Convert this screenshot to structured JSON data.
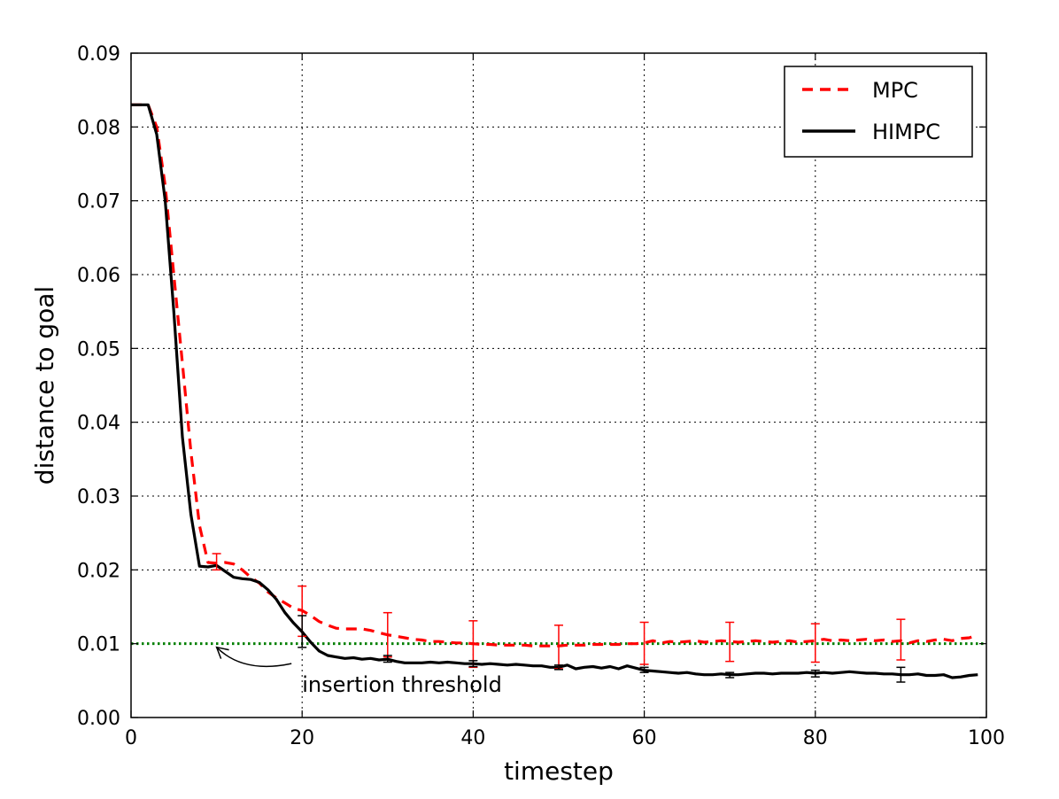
{
  "chart_data": {
    "type": "line",
    "title": "",
    "xlabel": "timestep",
    "ylabel": "distance to goal",
    "xlim": [
      0,
      100
    ],
    "ylim": [
      0,
      0.09
    ],
    "xticks": [
      "0",
      "20",
      "40",
      "60",
      "80",
      "100"
    ],
    "yticks": [
      "0.00",
      "0.01",
      "0.02",
      "0.03",
      "0.04",
      "0.05",
      "0.06",
      "0.07",
      "0.08",
      "0.09"
    ],
    "grid": true,
    "legend_position": "top-right",
    "series": [
      {
        "name": "MPC",
        "color": "#ff0000",
        "style": "dashed",
        "x": [
          0,
          1,
          2,
          3,
          4,
          5,
          6,
          7,
          8,
          9,
          10,
          11,
          12,
          13,
          14,
          15,
          16,
          17,
          18,
          19,
          20,
          21,
          22,
          23,
          24,
          25,
          26,
          27,
          28,
          29,
          30,
          31,
          32,
          33,
          34,
          35,
          36,
          37,
          38,
          39,
          40,
          41,
          42,
          43,
          44,
          45,
          46,
          47,
          48,
          49,
          50,
          51,
          52,
          53,
          54,
          55,
          56,
          57,
          58,
          59,
          60,
          61,
          62,
          63,
          64,
          65,
          66,
          67,
          68,
          69,
          70,
          71,
          72,
          73,
          74,
          75,
          76,
          77,
          78,
          79,
          80,
          81,
          82,
          83,
          84,
          85,
          86,
          87,
          88,
          89,
          90,
          91,
          92,
          93,
          94,
          95,
          96,
          97,
          98,
          99
        ],
        "y": [
          0.083,
          0.083,
          0.083,
          0.08,
          0.072,
          0.06,
          0.048,
          0.036,
          0.026,
          0.021,
          0.0209,
          0.021,
          0.0208,
          0.02,
          0.019,
          0.0182,
          0.017,
          0.0162,
          0.0155,
          0.0148,
          0.0145,
          0.0138,
          0.013,
          0.0125,
          0.0121,
          0.012,
          0.012,
          0.012,
          0.0118,
          0.0115,
          0.0112,
          0.011,
          0.0108,
          0.0106,
          0.0105,
          0.0103,
          0.0103,
          0.0102,
          0.0101,
          0.0101,
          0.01,
          0.0099,
          0.0099,
          0.0098,
          0.0098,
          0.0098,
          0.0098,
          0.0097,
          0.0097,
          0.0097,
          0.0097,
          0.0098,
          0.0098,
          0.0098,
          0.0099,
          0.0099,
          0.0099,
          0.0099,
          0.01,
          0.01,
          0.0101,
          0.0104,
          0.0101,
          0.0103,
          0.0102,
          0.0103,
          0.0104,
          0.0102,
          0.0103,
          0.0104,
          0.0103,
          0.0102,
          0.0103,
          0.0104,
          0.0103,
          0.0102,
          0.0103,
          0.0104,
          0.0102,
          0.0103,
          0.0104,
          0.0106,
          0.0104,
          0.0105,
          0.0104,
          0.0105,
          0.0106,
          0.0104,
          0.0105,
          0.0103,
          0.0104,
          0.0101,
          0.0104,
          0.0103,
          0.0105,
          0.0106,
          0.0104,
          0.0107,
          0.0108,
          0.0112
        ],
        "error_bars": [
          {
            "x": 10,
            "low": 0.02,
            "high": 0.0222
          },
          {
            "x": 20,
            "low": 0.011,
            "high": 0.0178
          },
          {
            "x": 30,
            "low": 0.0082,
            "high": 0.0142
          },
          {
            "x": 40,
            "low": 0.0068,
            "high": 0.0131
          },
          {
            "x": 50,
            "low": 0.0066,
            "high": 0.0125
          },
          {
            "x": 60,
            "low": 0.0072,
            "high": 0.0129
          },
          {
            "x": 70,
            "low": 0.0076,
            "high": 0.0129
          },
          {
            "x": 80,
            "low": 0.0075,
            "high": 0.0127
          },
          {
            "x": 90,
            "low": 0.0078,
            "high": 0.0133
          }
        ]
      },
      {
        "name": "HIMPC",
        "color": "#000000",
        "style": "solid",
        "x": [
          0,
          1,
          2,
          3,
          4,
          5,
          6,
          7,
          8,
          9,
          10,
          11,
          12,
          13,
          14,
          15,
          16,
          17,
          18,
          19,
          20,
          21,
          22,
          23,
          24,
          25,
          26,
          27,
          28,
          29,
          30,
          31,
          32,
          33,
          34,
          35,
          36,
          37,
          38,
          39,
          40,
          41,
          42,
          43,
          44,
          45,
          46,
          47,
          48,
          49,
          50,
          51,
          52,
          53,
          54,
          55,
          56,
          57,
          58,
          59,
          60,
          61,
          62,
          63,
          64,
          65,
          66,
          67,
          68,
          69,
          70,
          71,
          72,
          73,
          74,
          75,
          76,
          77,
          78,
          79,
          80,
          81,
          82,
          83,
          84,
          85,
          86,
          87,
          88,
          89,
          90,
          91,
          92,
          93,
          94,
          95,
          96,
          97,
          98,
          99
        ],
        "y": [
          0.083,
          0.083,
          0.083,
          0.079,
          0.07,
          0.055,
          0.038,
          0.0275,
          0.0205,
          0.0204,
          0.0206,
          0.0198,
          0.019,
          0.0188,
          0.0187,
          0.0183,
          0.0173,
          0.016,
          0.0142,
          0.0128,
          0.0116,
          0.0102,
          0.009,
          0.0084,
          0.0082,
          0.008,
          0.0081,
          0.0079,
          0.008,
          0.0078,
          0.0079,
          0.0076,
          0.0074,
          0.0074,
          0.0074,
          0.0075,
          0.0074,
          0.0075,
          0.0074,
          0.0073,
          0.0073,
          0.0072,
          0.0073,
          0.0072,
          0.0071,
          0.0072,
          0.0071,
          0.007,
          0.007,
          0.0068,
          0.0068,
          0.0071,
          0.0066,
          0.0068,
          0.0069,
          0.0067,
          0.0069,
          0.0066,
          0.007,
          0.0067,
          0.0064,
          0.0063,
          0.0062,
          0.0061,
          0.006,
          0.0061,
          0.0059,
          0.0058,
          0.0058,
          0.0059,
          0.0058,
          0.0058,
          0.0059,
          0.006,
          0.006,
          0.0059,
          0.006,
          0.006,
          0.006,
          0.0061,
          0.006,
          0.0061,
          0.006,
          0.0061,
          0.0062,
          0.0061,
          0.006,
          0.006,
          0.0059,
          0.0059,
          0.0058,
          0.0058,
          0.0059,
          0.0057,
          0.0057,
          0.0058,
          0.0054,
          0.0055,
          0.0057,
          0.0058
        ],
        "error_bars": [
          {
            "x": 20,
            "low": 0.0095,
            "high": 0.0138
          },
          {
            "x": 30,
            "low": 0.0075,
            "high": 0.0084
          },
          {
            "x": 40,
            "low": 0.0069,
            "high": 0.0077
          },
          {
            "x": 50,
            "low": 0.0065,
            "high": 0.0071
          },
          {
            "x": 60,
            "low": 0.0061,
            "high": 0.0068
          },
          {
            "x": 70,
            "low": 0.0054,
            "high": 0.0061
          },
          {
            "x": 80,
            "low": 0.0055,
            "high": 0.0064
          },
          {
            "x": 90,
            "low": 0.0048,
            "high": 0.0068
          }
        ]
      }
    ],
    "reference_lines": [
      {
        "y": 0.01,
        "color": "#007f00",
        "style": "dotted"
      }
    ],
    "annotations": [
      {
        "text": "insertion threshold",
        "target_x": 10,
        "target_y": 0.01,
        "text_x": 20,
        "text_y": 0.0025
      }
    ]
  }
}
